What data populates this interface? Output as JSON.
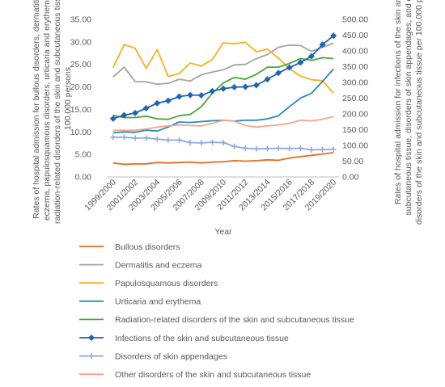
{
  "chart_data": {
    "type": "line",
    "title": "",
    "xlabel": "Year",
    "ylabel_left": "Rates of hospital admission for bullous disorders, dermatitis and eczema, papulosquamous disorders, urticaria and erythema, and radiation-related disorders of the skin and subcutaneous tissue per 100,000 persons",
    "ylabel_right": "Rates of hospital admission for infections of the skin and subcutaneous tissue, disorders of skin appendages, and other disorders of the skin and subcutaneous tissue per 100,000 persons",
    "ylabel_left_lines": [
      "Rates of hospital admission for bullous disorders, dermatitis and",
      "eczema, papulosquamous disorders, urticaria and erythema, and",
      "radiation-related disorders of the skin and subcutaneous tissue per",
      "100,000 persons"
    ],
    "ylabel_right_lines": [
      "Rates of hospital admission for infections of the skin and",
      "subcutaneous tissue, disorders of skin appendages, and other",
      "disorders of the skin and subcutaneous tissue per 100,000 persons"
    ],
    "ylim_left": [
      0,
      35
    ],
    "ylim_right": [
      0,
      500
    ],
    "yticks_left": [
      "0.00",
      "5.00",
      "10.00",
      "15.00",
      "20.00",
      "25.00",
      "30.00",
      "35.00"
    ],
    "yticks_right": [
      "0.00",
      "50.00",
      "100.00",
      "150.00",
      "200.00",
      "250.00",
      "300.00",
      "350.00",
      "400.00",
      "450.00",
      "500.00"
    ],
    "x": [
      "1999/2000",
      "2000/2001",
      "2001/2002",
      "2002/2003",
      "2003/2004",
      "2004/2005",
      "2005/2006",
      "2006/2007",
      "2007/2008",
      "2008/2009",
      "2009/2010",
      "2010/2011",
      "2011/2012",
      "2012/2013",
      "2013/2014",
      "2014/2015",
      "2015/2016",
      "2016/2017",
      "2017/2018",
      "2018/2019",
      "2019/2020"
    ],
    "x_tick_labels": [
      "1999/2000",
      "2001/2002",
      "2003/2004",
      "2005/2006",
      "2007/2008",
      "2009/2010",
      "2011/2012",
      "2013/2014",
      "2015/2016",
      "2017/2018",
      "2019/2020"
    ],
    "grid": false,
    "legend_position": "bottom",
    "series": [
      {
        "name": "Bullous disorders",
        "axis": "left",
        "color": "#E46C1E",
        "marker": "none",
        "values": [
          3.1,
          2.8,
          2.9,
          2.9,
          3.2,
          3.1,
          3.2,
          3.3,
          3.1,
          3.3,
          3.4,
          3.6,
          3.5,
          3.6,
          3.8,
          3.7,
          4.2,
          4.5,
          4.8,
          5.1,
          5.4
        ]
      },
      {
        "name": "Dermatitis and eczema",
        "axis": "left",
        "color": "#A5A5A5",
        "marker": "none",
        "values": [
          22.2,
          24.4,
          21.2,
          21.1,
          20.6,
          20.8,
          21.7,
          21.3,
          22.7,
          23.3,
          23.8,
          24.9,
          25.0,
          26.3,
          27.2,
          28.8,
          29.3,
          29.2,
          27.9,
          28.8,
          29.7
        ]
      },
      {
        "name": "Papulosquamous disorders",
        "axis": "left",
        "color": "#F5B21B",
        "marker": "none",
        "values": [
          24.3,
          29.4,
          28.6,
          24.1,
          28.3,
          22.3,
          23.0,
          25.3,
          24.6,
          26.1,
          29.8,
          29.6,
          29.9,
          27.8,
          28.4,
          26.4,
          24.1,
          22.4,
          21.6,
          21.4,
          18.6
        ]
      },
      {
        "name": "Urticaria and erythema",
        "axis": "left",
        "color": "#2C8AB8",
        "marker": "none",
        "values": [
          9.8,
          10.0,
          9.9,
          10.4,
          10.2,
          11.1,
          12.2,
          12.1,
          12.3,
          12.5,
          12.6,
          12.4,
          12.6,
          12.6,
          12.9,
          13.6,
          15.6,
          17.5,
          18.6,
          21.2,
          24.0
        ]
      },
      {
        "name": "Radiation-related disorders of the skin and subcutaneous tissue",
        "axis": "left",
        "color": "#4CA33F",
        "marker": "none",
        "values": [
          13.7,
          13.2,
          13.2,
          13.5,
          12.9,
          12.8,
          13.6,
          13.9,
          15.6,
          18.6,
          20.9,
          22.1,
          21.7,
          22.8,
          24.4,
          24.4,
          25.2,
          26.3,
          25.9,
          26.5,
          26.3
        ]
      },
      {
        "name": "Infections of the skin and subcutaneous tissue",
        "axis": "right",
        "color": "#1F65B1",
        "marker": "diamond",
        "values": [
          185,
          196,
          203,
          218,
          234,
          242,
          255,
          260,
          259,
          272,
          280,
          285,
          286,
          291,
          310,
          330,
          347,
          363,
          383,
          420,
          448
        ]
      },
      {
        "name": "Disorders of skin appendages",
        "axis": "right",
        "color": "#8EA9DB",
        "marker": "plus",
        "values": [
          126,
          126,
          123,
          124,
          120,
          117,
          117,
          109,
          108,
          110,
          109,
          97,
          91,
          89,
          90,
          91,
          90,
          91,
          86,
          87,
          88
        ]
      },
      {
        "name": "Other disorders of the skin and subcutaneous tissue",
        "axis": "right",
        "color": "#F4A58A",
        "marker": "none",
        "values": [
          148,
          148,
          148,
          152,
          158,
          162,
          165,
          163,
          162,
          170,
          180,
          177,
          163,
          158,
          162,
          165,
          170,
          180,
          178,
          183,
          192
        ]
      }
    ]
  }
}
